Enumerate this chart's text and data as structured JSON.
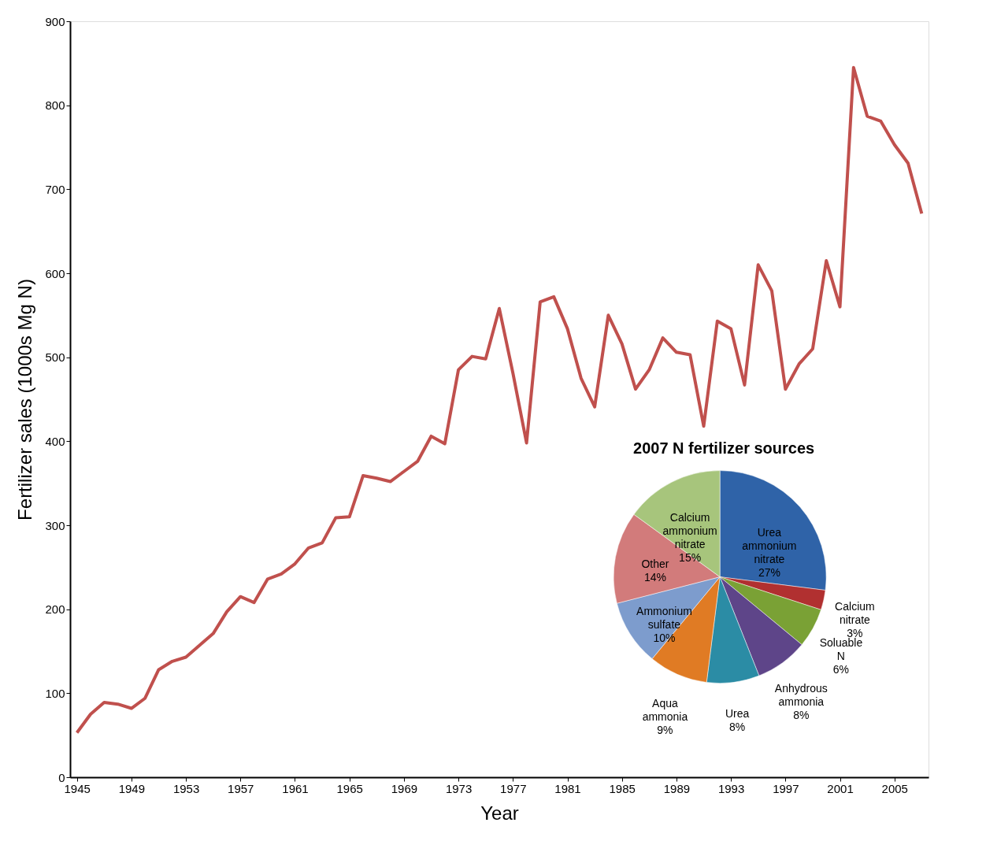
{
  "chart_data": [
    {
      "type": "line",
      "xlabel": "Year",
      "ylabel": "Fertilizer sales (1000s Mg N)",
      "x": [
        1945,
        1946,
        1947,
        1948,
        1949,
        1950,
        1951,
        1952,
        1953,
        1954,
        1955,
        1956,
        1957,
        1958,
        1959,
        1960,
        1961,
        1962,
        1963,
        1964,
        1965,
        1966,
        1967,
        1968,
        1969,
        1970,
        1971,
        1972,
        1973,
        1974,
        1975,
        1976,
        1977,
        1978,
        1979,
        1980,
        1981,
        1982,
        1983,
        1984,
        1985,
        1986,
        1987,
        1988,
        1989,
        1990,
        1991,
        1992,
        1993,
        1994,
        1995,
        1996,
        1997,
        1998,
        1999,
        2000,
        2001,
        2002,
        2003,
        2004,
        2005,
        2006,
        2007
      ],
      "series": [
        {
          "color": "#c0504d",
          "values": [
            53,
            75,
            89,
            87,
            82,
            94,
            128,
            138,
            143,
            157,
            171,
            197,
            215,
            208,
            236,
            242,
            254,
            273,
            279,
            309,
            310,
            359,
            356,
            352,
            364,
            376,
            406,
            397,
            485,
            501,
            498,
            558,
            481,
            398,
            566,
            572,
            534,
            475,
            441,
            550,
            516,
            462,
            485,
            523,
            506,
            503,
            418,
            543,
            534,
            467,
            610,
            579,
            462,
            492,
            510,
            615,
            560,
            845,
            787,
            781,
            753,
            731,
            671
          ]
        }
      ],
      "xlim": [
        1944.5,
        2007.5
      ],
      "xticks": [
        1945,
        1949,
        1953,
        1957,
        1961,
        1965,
        1969,
        1973,
        1977,
        1981,
        1985,
        1989,
        1993,
        1997,
        2001,
        2005
      ],
      "ylim": [
        0,
        900
      ],
      "yticks": [
        0,
        100,
        200,
        300,
        400,
        500,
        600,
        700,
        800,
        900
      ],
      "grid": false,
      "marker": "none",
      "line_style": "solid"
    },
    {
      "type": "pie",
      "title": "2007 N fertilizer sources",
      "categories": [
        "Urea ammonium nitrate",
        "Calcium nitrate",
        "Soluable N",
        "Anhydrous ammonia",
        "Urea",
        "Aqua ammonia",
        "Ammonium sulfate",
        "Other",
        "Calcium ammonium nitrate"
      ],
      "values": [
        27,
        3,
        6,
        8,
        8,
        9,
        10,
        14,
        15
      ],
      "value_labels": [
        "27%",
        "3%",
        "6%",
        "8%",
        "8%",
        "9%",
        "10%",
        "14%",
        "15%"
      ],
      "colors": [
        "#2f63a8",
        "#b13030",
        "#7aa135",
        "#5e4589",
        "#2b8ca5",
        "#e07b24",
        "#7d9ccd",
        "#d27b7b",
        "#a7c57c"
      ]
    }
  ]
}
